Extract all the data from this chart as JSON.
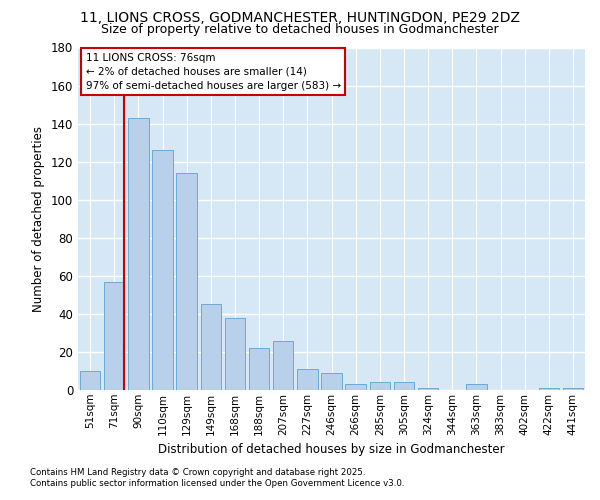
{
  "title_line1": "11, LIONS CROSS, GODMANCHESTER, HUNTINGDON, PE29 2DZ",
  "title_line2": "Size of property relative to detached houses in Godmanchester",
  "xlabel": "Distribution of detached houses by size in Godmanchester",
  "ylabel": "Number of detached properties",
  "categories": [
    "51sqm",
    "71sqm",
    "90sqm",
    "110sqm",
    "129sqm",
    "149sqm",
    "168sqm",
    "188sqm",
    "207sqm",
    "227sqm",
    "246sqm",
    "266sqm",
    "285sqm",
    "305sqm",
    "324sqm",
    "344sqm",
    "363sqm",
    "383sqm",
    "402sqm",
    "422sqm",
    "441sqm"
  ],
  "values": [
    10,
    57,
    143,
    126,
    114,
    45,
    38,
    22,
    26,
    11,
    9,
    3,
    4,
    4,
    1,
    0,
    3,
    0,
    0,
    1,
    1
  ],
  "bar_color": "#b8d0ea",
  "bar_edge_color": "#6aaad4",
  "vline_color": "#cc0000",
  "vline_pos": 1.42,
  "annotation_title": "11 LIONS CROSS: 76sqm",
  "annotation_line2": "← 2% of detached houses are smaller (14)",
  "annotation_line3": "97% of semi-detached houses are larger (583) →",
  "annotation_box_color": "#cc0000",
  "ylim": [
    0,
    180
  ],
  "yticks": [
    0,
    20,
    40,
    60,
    80,
    100,
    120,
    140,
    160,
    180
  ],
  "plot_bg_color": "#d6e8f5",
  "grid_color": "#ffffff",
  "fig_bg_color": "#ffffff",
  "footer_line1": "Contains HM Land Registry data © Crown copyright and database right 2025.",
  "footer_line2": "Contains public sector information licensed under the Open Government Licence v3.0."
}
